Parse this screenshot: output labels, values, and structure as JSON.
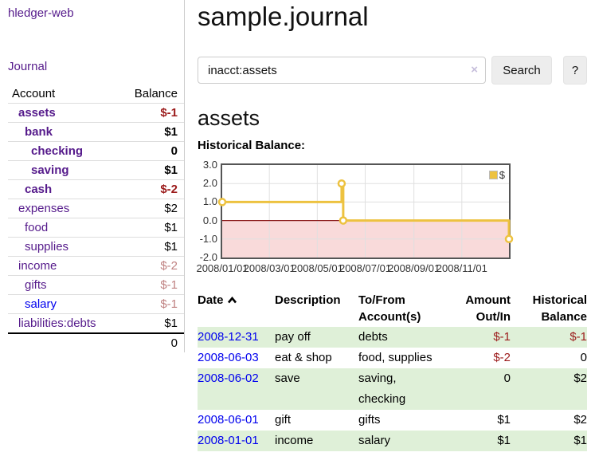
{
  "sidebar": {
    "app_title": "hledger-web",
    "journal_link": "Journal",
    "table": {
      "account_header": "Account",
      "balance_header": "Balance",
      "rows": [
        {
          "name": "assets",
          "balance": "$-1"
        },
        {
          "name": "bank",
          "balance": "$1"
        },
        {
          "name": "checking",
          "balance": "0"
        },
        {
          "name": "saving",
          "balance": "$1"
        },
        {
          "name": "cash",
          "balance": "$-2"
        },
        {
          "name": "expenses",
          "balance": "$2"
        },
        {
          "name": "food",
          "balance": "$1"
        },
        {
          "name": "supplies",
          "balance": "$1"
        },
        {
          "name": "income",
          "balance": "$-2"
        },
        {
          "name": "gifts",
          "balance": "$-1"
        },
        {
          "name": "salary",
          "balance": "$-1"
        },
        {
          "name": "liabilities:debts",
          "balance": "$1"
        }
      ],
      "total": "0"
    }
  },
  "main": {
    "title": "sample.journal",
    "search": {
      "value": "inacct:assets",
      "clear_icon": "×",
      "button_label": "Search",
      "help_label": "?"
    },
    "account_heading": "assets",
    "chart_label": "Historical Balance:"
  },
  "chart_data": {
    "type": "line",
    "step": true,
    "title": "Historical Balance",
    "series": [
      {
        "name": "$",
        "color": "#edc240",
        "points": [
          {
            "date": "2008-01-01",
            "day": 0,
            "value": 1
          },
          {
            "date": "2008-06-01",
            "day": 152,
            "value": 2
          },
          {
            "date": "2008-06-03",
            "day": 154,
            "value": 0
          },
          {
            "date": "2008-12-31",
            "day": 365,
            "value": -1
          }
        ]
      }
    ],
    "ylim": [
      -2,
      3
    ],
    "xlim_days": [
      0,
      365
    ],
    "yticks": [
      "3.0",
      "2.0",
      "1.0",
      "0.0",
      "-1.0",
      "-2.0"
    ],
    "ytick_values": [
      3,
      2,
      1,
      0,
      -1,
      -2
    ],
    "xticks": [
      {
        "label": "2008/01/01",
        "day": 0
      },
      {
        "label": "2008/03/01",
        "day": 60
      },
      {
        "label": "2008/05/01",
        "day": 121
      },
      {
        "label": "2008/07/01",
        "day": 182
      },
      {
        "label": "2008/09/01",
        "day": 244
      },
      {
        "label": "2008/11/01",
        "day": 305
      }
    ],
    "legend": {
      "label": "$",
      "color": "#edc240",
      "position": "top-right"
    },
    "grid": true,
    "negative_region_color": "#f9dada",
    "zero_line_color": "#8b1a1a"
  },
  "register": {
    "headers": {
      "date": "Date",
      "description": "Description",
      "accounts": "To/From Account(s)",
      "amount": "Amount Out/In",
      "balance": "Historical Balance"
    },
    "rows": [
      {
        "date": "2008-12-31",
        "description": "pay off",
        "accounts": "debts",
        "amount": "$-1",
        "balance": "$-1"
      },
      {
        "date": "2008-06-03",
        "description": "eat & shop",
        "accounts": "food, supplies",
        "amount": "$-2",
        "balance": "0"
      },
      {
        "date": "2008-06-02",
        "description": "save",
        "accounts": "saving,\nchecking",
        "amount": "0",
        "balance": "$2"
      },
      {
        "date": "2008-06-01",
        "description": "gift",
        "accounts": "gifts",
        "amount": "$1",
        "balance": "$2"
      },
      {
        "date": "2008-01-01",
        "description": "income",
        "accounts": "salary",
        "amount": "$1",
        "balance": "$1"
      }
    ]
  },
  "colors": {
    "link_purple": "#551a8b",
    "link_blue": "#0000ee",
    "negative": "#9b1a1a",
    "negative_muted": "#bf8080",
    "row_green": "#dff0d8",
    "chart_line": "#edc240",
    "chart_negative_bg": "#f9dada",
    "chart_zero_line": "#8b1a1a"
  }
}
